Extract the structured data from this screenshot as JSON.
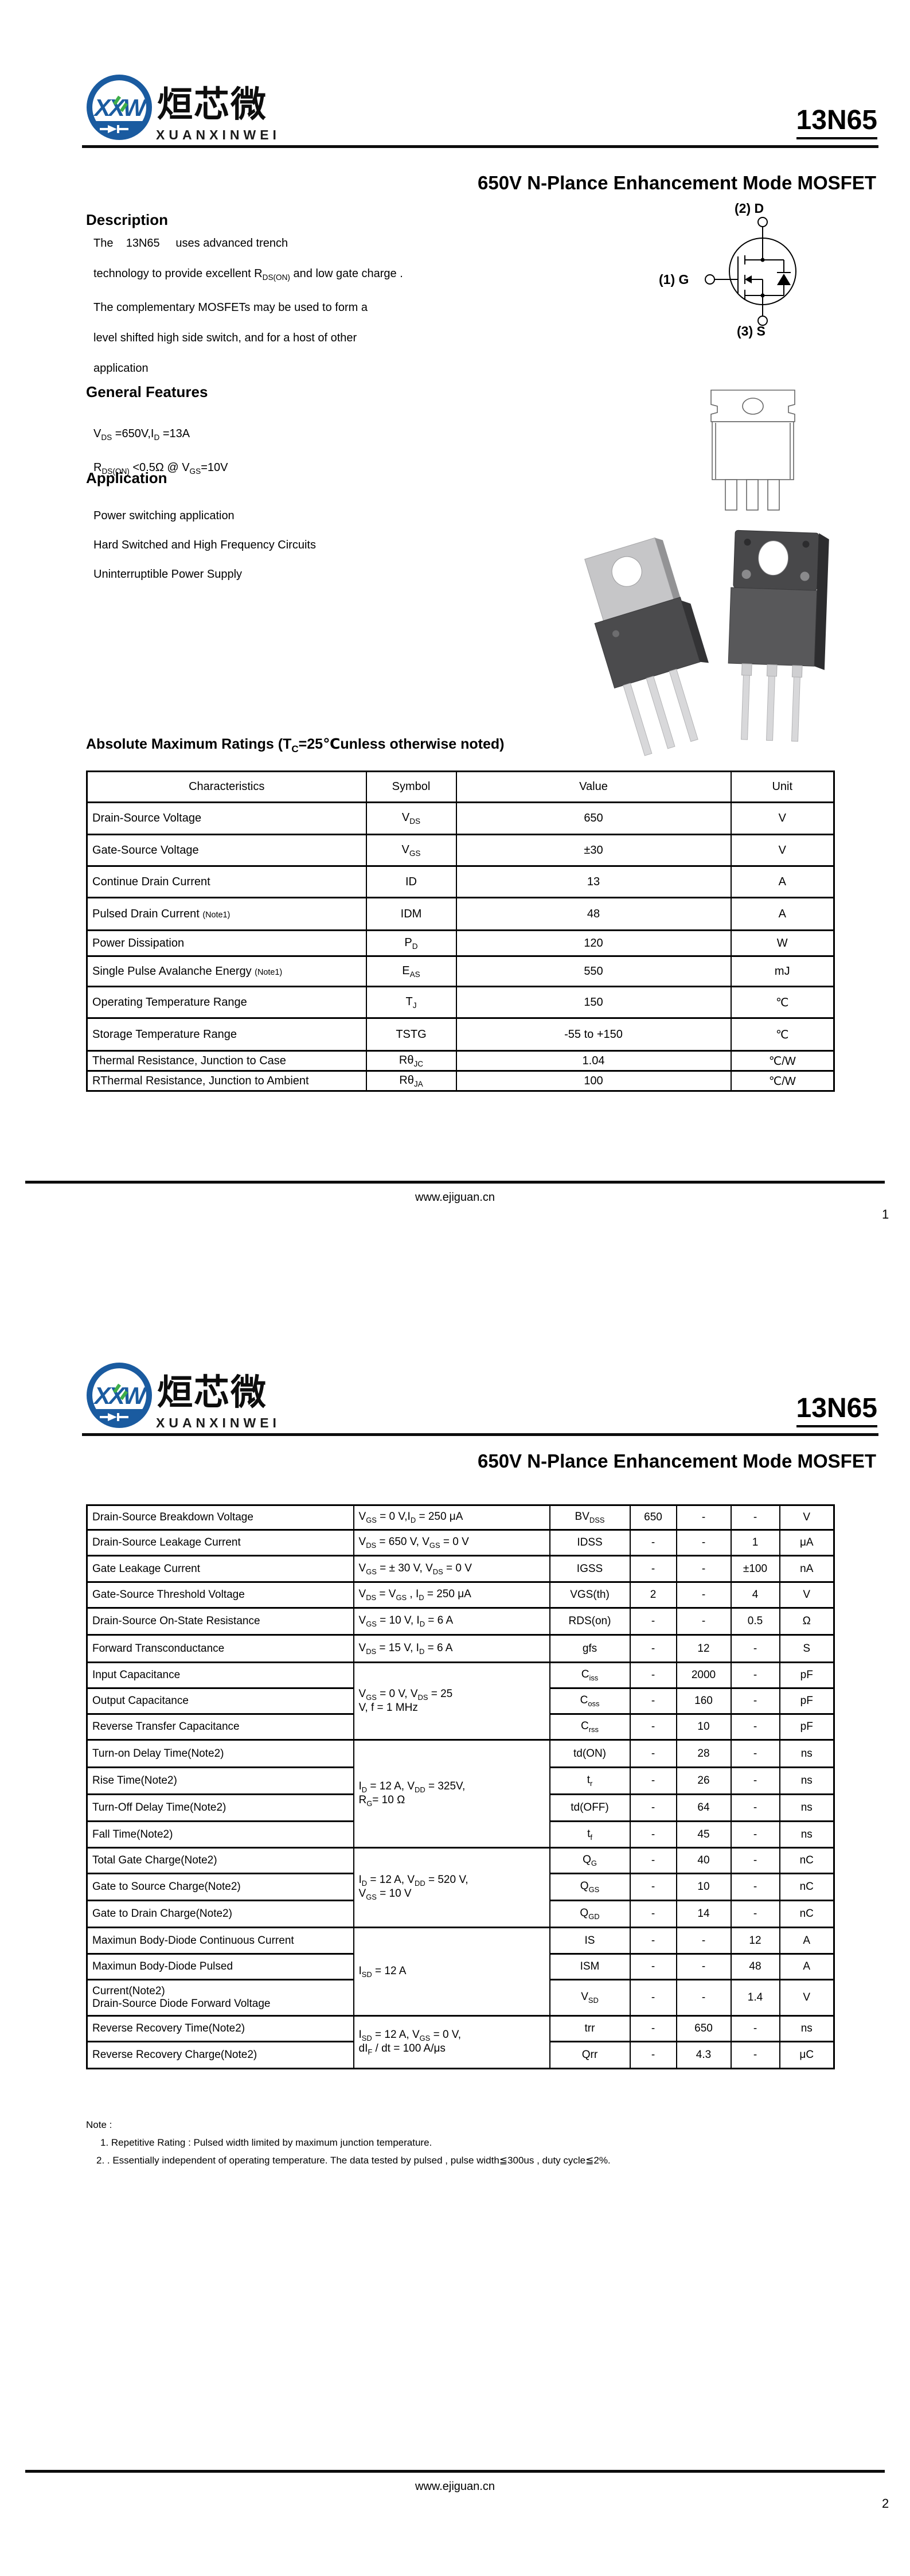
{
  "brand": {
    "xxw": "XXW",
    "cn": "烜芯微",
    "en": "XUANXINWEI"
  },
  "product": "13N65",
  "subtitle": "650V N-Plance Enhancement Mode MOSFET",
  "footer": {
    "url": "www.ejiguan.cn",
    "page1": "1",
    "page2": "2"
  },
  "page1": {
    "description": {
      "heading": "Description",
      "lines": "The    13N65     uses advanced trench\ntechnology to provide excellent R~DS(ON)~ and low gate charge .\nThe complementary MOSFETs may be used to form a\nlevel shifted high side switch, and for a host of other\napplication"
    },
    "general_features": {
      "heading": "General Features",
      "lines": "V~DS~ =650V,I~D~ =13A\nR~DS(ON)~ <0.5Ω @ V~GS~=10V"
    },
    "application": {
      "heading": "Application",
      "lines": "Power switching application\nHard Switched and High Frequency Circuits\nUninterruptible Power Supply"
    },
    "symbol_labels": {
      "drain": "(2) D",
      "gate": "(1) G",
      "source": "(3) S"
    },
    "abs_max": {
      "title": "Absolute Maximum Ratings (T~C~=25℃unless otherwise noted)",
      "headers": [
        "Characteristics",
        "Symbol",
        "Value",
        "Unit"
      ],
      "rows": [
        {
          "c": "Drain-Source Voltage",
          "s": "V~DS~",
          "v": "650",
          "u": "V"
        },
        {
          "c": "Gate-Source Voltage",
          "s": "V~GS~",
          "v": "±30",
          "u": "V"
        },
        {
          "c": "Continue Drain Current",
          "s": "ID",
          "v": "13",
          "u": "A"
        },
        {
          "c": "Pulsed Drain Current ^(Note1)^",
          "s": "IDM",
          "v": "48",
          "u": "A"
        },
        {
          "c": "Power Dissipation",
          "s": "P~D~",
          "v": "120",
          "u": "W"
        },
        {
          "c": "Single Pulse Avalanche Energy ^(Note1)^",
          "s": "E~AS~",
          "v": "550",
          "u": "mJ"
        },
        {
          "c": "Operating Temperature Range",
          "s": "T~J~",
          "v": "150",
          "u": "℃"
        },
        {
          "c": "Storage Temperature Range",
          "s": "TSTG",
          "v": "-55 to +150",
          "u": "℃"
        },
        {
          "c": "Thermal Resistance, Junction to Case",
          "s": "Rθ~JC~",
          "v": "1.04",
          "u": "℃/W"
        },
        {
          "c": "RThermal Resistance, Junction to Ambient",
          "s": "Rθ~JA~",
          "v": "100",
          "u": "℃/W"
        }
      ]
    }
  },
  "page2": {
    "table": {
      "rows": [
        {
          "c": "Drain-Source Breakdown Voltage",
          "cond": "V~GS~ = 0 V,I~D~ = 250 μA",
          "s": "BV~DSS~",
          "min": "650",
          "typ": "-",
          "max": "-",
          "u": "V"
        },
        {
          "c": "Drain-Source Leakage Current",
          "cond": "V~DS~ = 650 V, V~GS~ = 0 V",
          "s": "IDSS",
          "min": "-",
          "typ": "-",
          "max": "1",
          "u": "μA"
        },
        {
          "c": "Gate Leakage Current",
          "cond": "V~GS~ = ± 30 V, V~DS~ = 0 V",
          "s": "IGSS",
          "min": "-",
          "typ": "-",
          "max": "±100",
          "u": "nA"
        },
        {
          "c": "Gate-Source Threshold Voltage",
          "cond": "V~DS~ = V~GS~ , I~D~  = 250 μA",
          "s": "VGS(th)",
          "min": "2",
          "typ": "-",
          "max": "4",
          "u": "V"
        },
        {
          "c": "Drain-Source On-State Resistance",
          "cond": "V~GS~ = 10 V, I~D~ = 6 A",
          "s": "RDS(on)",
          "min": "-",
          "typ": "-",
          "max": "0.5",
          "u": "Ω"
        },
        {
          "c": "Forward Transconductance",
          "cond": "V~DS~ = 15 V, I~D~ = 6 A",
          "s": "gfs",
          "min": "-",
          "typ": "12",
          "max": "-",
          "u": "S"
        },
        {
          "c": "Input Capacitance",
          "cond": "V~GS~ = 0 V, V~DS~ = 25\nV,  f = 1 MHz",
          "s": "C~iss~",
          "min": "-",
          "typ": "2000",
          "max": "-",
          "u": "pF"
        },
        {
          "c": "Output Capacitance",
          "s": "C~oss~",
          "min": "-",
          "typ": "160",
          "max": "-",
          "u": "pF"
        },
        {
          "c": "Reverse Transfer Capacitance",
          "s": "C~rss~",
          "min": "-",
          "typ": "10",
          "max": "-",
          "u": "pF"
        },
        {
          "c": "Turn-on Delay Time(Note2)",
          "cond": "I~D~ = 12 A, V~DD~ = 325V,\nR~G~= 10 Ω",
          "s": "td(ON)",
          "min": "-",
          "typ": "28",
          "max": "-",
          "u": "ns"
        },
        {
          "c": "Rise Time(Note2)",
          "s": "t~r~",
          "min": "-",
          "typ": "26",
          "max": "-",
          "u": "ns"
        },
        {
          "c": "Turn-Off Delay Time(Note2)",
          "s": "td(OFF)",
          "min": "-",
          "typ": "64",
          "max": "-",
          "u": "ns"
        },
        {
          "c": "Fall Time(Note2)",
          "s": "t~f~",
          "min": "-",
          "typ": "45",
          "max": "-",
          "u": "ns"
        },
        {
          "c": "Total Gate Charge(Note2)",
          "cond": "I~D~ = 12 A, V~DD~ = 520 V,\nV~GS~ = 10 V",
          "s": "Q~G~",
          "min": "-",
          "typ": "40",
          "max": "-",
          "u": "nC"
        },
        {
          "c": "Gate to Source Charge(Note2)",
          "s": "Q~GS~",
          "min": "-",
          "typ": "10",
          "max": "-",
          "u": "nC"
        },
        {
          "c": "Gate to Drain Charge(Note2)",
          "s": "Q~GD~",
          "min": "-",
          "typ": "14",
          "max": "-",
          "u": "nC"
        },
        {
          "c": "Maximun Body-Diode Continuous Current",
          "cond": "I~SD~  = 12 A",
          "s": "IS",
          "min": "-",
          "typ": "-",
          "max": "12",
          "u": "A"
        },
        {
          "c": "Maximun Body-Diode  Pulsed",
          "s": "ISM",
          "min": "-",
          "typ": "-",
          "max": "48",
          "u": "A"
        },
        {
          "c": "Current(Note2)\nDrain-Source Diode Forward Voltage",
          "s": "V~SD~",
          "min": "-",
          "typ": "-",
          "max": "1.4",
          "u": "V"
        },
        {
          "c": "Reverse Recovery Time(Note2)",
          "cond": "I~SD~ = 12 A, V~GS~ = 0 V,\ndI~F~ / dt = 100 A/μs",
          "s": "trr",
          "min": "-",
          "typ": "650",
          "max": "-",
          "u": "ns"
        },
        {
          "c": "Reverse Recovery Charge(Note2)",
          "s": "Qrr",
          "min": "-",
          "typ": "4.3",
          "max": "-",
          "u": "μC"
        }
      ]
    },
    "notes": {
      "heading": "Note :",
      "line1": "1.    Repetitive Rating : Pulsed width limited by maximum junction temperature.",
      "line2": "2. .   Essentially independent of operating temperature. The data tested by pulsed , pulse width≦300us , duty cycle≦2%."
    }
  }
}
